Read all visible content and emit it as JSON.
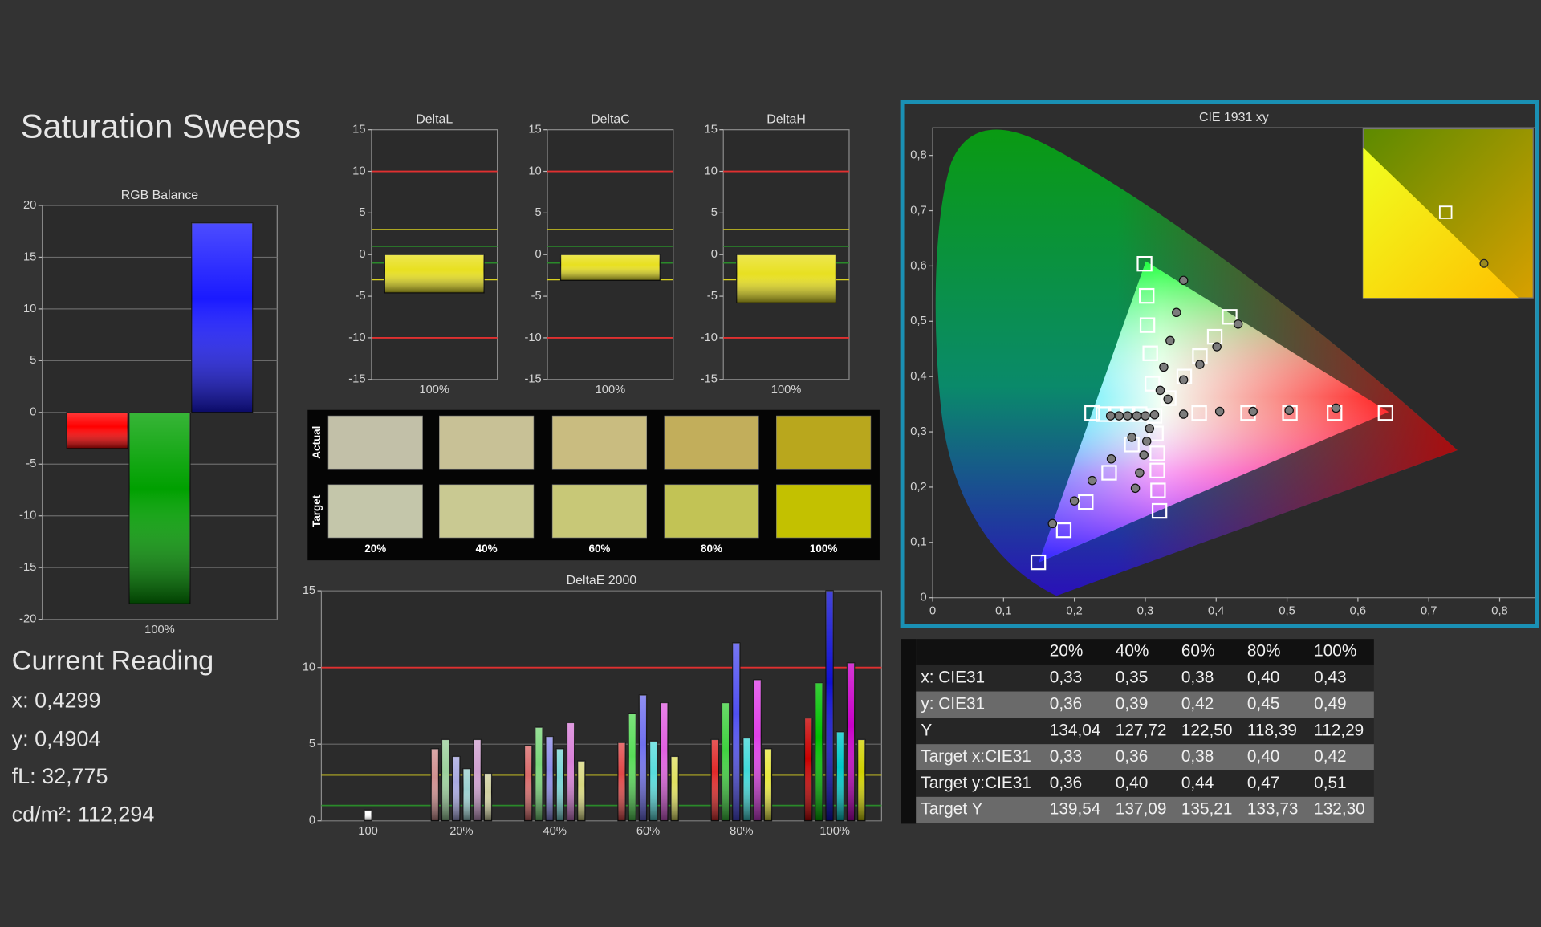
{
  "title": "Saturation Sweeps",
  "current_reading": {
    "title": "Current Reading",
    "lines": [
      "x: 0,4299",
      "y: 0,4904",
      "fL: 32,775",
      "cd/m²: 112,294"
    ]
  },
  "swatches": {
    "rows": [
      "Actual",
      "Target"
    ],
    "columns": [
      "20%",
      "40%",
      "60%",
      "80%",
      "100%"
    ],
    "colors": [
      [
        "#c2c0a8",
        "#c8c196",
        "#c9bc80",
        "#c2ae5b",
        "#b9a71d"
      ],
      [
        "#c4c6aa",
        "#c9c992",
        "#c8c877",
        "#c2c355",
        "#c3c100"
      ]
    ]
  },
  "table": {
    "columns": [
      "20%",
      "40%",
      "60%",
      "80%",
      "100%"
    ],
    "rows": [
      {
        "label": "x: CIE31",
        "cells": [
          "0,33",
          "0,35",
          "0,38",
          "0,40",
          "0,43"
        ]
      },
      {
        "label": "y: CIE31",
        "cells": [
          "0,36",
          "0,39",
          "0,42",
          "0,45",
          "0,49"
        ]
      },
      {
        "label": "Y",
        "cells": [
          "134,04",
          "127,72",
          "122,50",
          "118,39",
          "112,29"
        ]
      },
      {
        "label": "Target x:CIE31",
        "cells": [
          "0,33",
          "0,36",
          "0,38",
          "0,40",
          "0,42"
        ]
      },
      {
        "label": "Target y:CIE31",
        "cells": [
          "0,36",
          "0,40",
          "0,44",
          "0,47",
          "0,51"
        ]
      },
      {
        "label": "Target Y",
        "cells": [
          "139,54",
          "137,09",
          "135,21",
          "133,73",
          "132,30"
        ]
      }
    ]
  },
  "chart_data": [
    {
      "type": "bar",
      "title": "RGB Balance",
      "categories": [
        "100%"
      ],
      "series": [
        {
          "color": "#ff0000",
          "values": [
            -3.5
          ]
        },
        {
          "color": "#00a000",
          "values": [
            -18.5
          ]
        },
        {
          "color": "#1a1aff",
          "values": [
            18.3
          ]
        }
      ],
      "ylim": [
        -20,
        20
      ],
      "yticks": [
        -20,
        -15,
        -10,
        -5,
        0,
        5,
        10,
        15,
        20
      ],
      "grid": true
    },
    {
      "type": "bar",
      "title": "DeltaL",
      "categories": [
        "100%"
      ],
      "values": [
        -4.6
      ],
      "color": "#e8e020",
      "ylim": [
        -15,
        15
      ],
      "yticks": [
        15,
        10,
        5,
        0,
        -5,
        -10,
        -15
      ],
      "grid": false,
      "reference_lines": [
        {
          "value": 10,
          "color": "#e03030"
        },
        {
          "value": -10,
          "color": "#e03030"
        },
        {
          "value": 3,
          "color": "#d8d020"
        },
        {
          "value": -3,
          "color": "#d8d020"
        },
        {
          "value": 1,
          "color": "#2a8a2a"
        },
        {
          "value": -1,
          "color": "#2a8a2a"
        }
      ]
    },
    {
      "type": "bar",
      "title": "DeltaC",
      "categories": [
        "100%"
      ],
      "values": [
        -3.1
      ],
      "color": "#e8e020",
      "ylim": [
        -15,
        15
      ],
      "yticks": [
        15,
        10,
        5,
        0,
        -5,
        -10,
        -15
      ],
      "grid": false,
      "reference_lines": [
        {
          "value": 10,
          "color": "#e03030"
        },
        {
          "value": -10,
          "color": "#e03030"
        },
        {
          "value": 3,
          "color": "#d8d020"
        },
        {
          "value": -3,
          "color": "#d8d020"
        },
        {
          "value": 1,
          "color": "#2a8a2a"
        },
        {
          "value": -1,
          "color": "#2a8a2a"
        }
      ]
    },
    {
      "type": "bar",
      "title": "DeltaH",
      "categories": [
        "100%"
      ],
      "values": [
        -5.8
      ],
      "color": "#e8e020",
      "ylim": [
        -15,
        15
      ],
      "yticks": [
        15,
        10,
        5,
        0,
        -5,
        -10,
        -15
      ],
      "grid": false,
      "reference_lines": [
        {
          "value": 10,
          "color": "#e03030"
        },
        {
          "value": -10,
          "color": "#e03030"
        },
        {
          "value": 3,
          "color": "#d8d020"
        },
        {
          "value": -3,
          "color": "#d8d020"
        },
        {
          "value": 1,
          "color": "#2a8a2a"
        },
        {
          "value": -1,
          "color": "#2a8a2a"
        }
      ]
    },
    {
      "type": "bar",
      "title": "DeltaE 2000",
      "categories": [
        "100",
        "20%",
        "40%",
        "60%",
        "80%",
        "100%"
      ],
      "series": [
        {
          "colors": [
            "#ffffff",
            null,
            null,
            null,
            null,
            null
          ],
          "values": [
            0.7,
            null,
            null,
            null,
            null,
            null
          ]
        },
        {
          "colors": [
            null,
            "#d09090",
            "#d86a6a",
            "#e04848",
            "#e02a2a",
            "#c80000"
          ],
          "values": [
            null,
            4.7,
            4.9,
            5.1,
            5.3,
            6.7
          ]
        },
        {
          "colors": [
            null,
            "#9cd09c",
            "#7ad67a",
            "#58dc58",
            "#40d040",
            "#00c000"
          ],
          "values": [
            null,
            5.3,
            6.1,
            7.0,
            7.7,
            9.0
          ]
        },
        {
          "colors": [
            null,
            "#a8a8e0",
            "#8c8ce8",
            "#7070ee",
            "#5050f0",
            "#1010d0"
          ],
          "values": [
            null,
            4.2,
            5.5,
            8.2,
            11.6,
            15
          ]
        },
        {
          "colors": [
            null,
            "#9cd0d0",
            "#7ad6d6",
            "#58dcdc",
            "#40d8d8",
            "#00c8c8"
          ],
          "values": [
            null,
            3.4,
            4.7,
            5.2,
            5.4,
            5.8
          ]
        },
        {
          "colors": [
            null,
            "#d0a0d0",
            "#d880d8",
            "#e060e0",
            "#e040e8",
            "#c800c8"
          ],
          "values": [
            null,
            5.3,
            6.4,
            7.7,
            9.2,
            10.3
          ]
        },
        {
          "colors": [
            null,
            "#d0d0a0",
            "#d8d880",
            "#e0e060",
            "#e8e840",
            "#d0d000"
          ],
          "values": [
            null,
            3.1,
            3.9,
            4.2,
            4.7,
            5.3
          ]
        }
      ],
      "ylim": [
        0,
        15
      ],
      "yticks": [
        0,
        5,
        10,
        15
      ],
      "grid": true,
      "reference_lines": [
        {
          "value": 10,
          "color": "#e03030"
        },
        {
          "value": 3,
          "color": "#d8d020"
        },
        {
          "value": 1,
          "color": "#2a8a2a"
        }
      ]
    },
    {
      "type": "scatter",
      "title": "CIE 1931 xy",
      "xlim": [
        0,
        0.85
      ],
      "ylim": [
        0,
        0.85
      ],
      "xticks": [
        0,
        {
          "value": 0.1,
          "label": "0,1"
        },
        {
          "value": 0.2,
          "label": "0,2"
        },
        {
          "value": 0.3,
          "label": "0,3"
        },
        {
          "value": 0.4,
          "label": "0,4"
        },
        {
          "value": 0.5,
          "label": "0,5"
        },
        {
          "value": 0.6,
          "label": "0,6"
        },
        {
          "value": 0.7,
          "label": "0,7"
        },
        {
          "value": 0.8,
          "label": "0,8"
        }
      ],
      "yticks": [
        0,
        {
          "value": 0.1,
          "label": "0,1"
        },
        {
          "value": 0.2,
          "label": "0,2"
        },
        {
          "value": 0.3,
          "label": "0,3"
        },
        {
          "value": 0.4,
          "label": "0,4"
        },
        {
          "value": 0.5,
          "label": "0,5"
        },
        {
          "value": 0.6,
          "label": "0,6"
        },
        {
          "value": 0.7,
          "label": "0,7"
        },
        {
          "value": 0.8,
          "label": "0,8"
        }
      ],
      "grid": false,
      "series": [
        {
          "marker": "square",
          "color": "#ffffff",
          "x": [
            0.313,
            0.376,
            0.445,
            0.504,
            0.567,
            0.639,
            0.31,
            0.307,
            0.303,
            0.302,
            0.299,
            0.281,
            0.249,
            0.216,
            0.185,
            0.149,
            0.292,
            0.275,
            0.258,
            0.241,
            0.225,
            0.315,
            0.317,
            0.317,
            0.318,
            0.32,
            0.333,
            0.355,
            0.377,
            0.398,
            0.419
          ],
          "y": [
            0.329,
            0.334,
            0.334,
            0.334,
            0.334,
            0.334,
            0.387,
            0.442,
            0.493,
            0.546,
            0.604,
            0.277,
            0.226,
            0.173,
            0.122,
            0.064,
            0.332,
            0.332,
            0.332,
            0.332,
            0.334,
            0.297,
            0.261,
            0.23,
            0.194,
            0.157,
            0.361,
            0.4,
            0.437,
            0.472,
            0.508
          ]
        },
        {
          "marker": "circle",
          "color": "#7c7c7c",
          "x": [
            0.313,
            0.354,
            0.405,
            0.452,
            0.503,
            0.569,
            0.321,
            0.326,
            0.335,
            0.344,
            0.354,
            0.281,
            0.252,
            0.225,
            0.2,
            0.169,
            0.3,
            0.288,
            0.275,
            0.263,
            0.251,
            0.306,
            0.302,
            0.298,
            0.292,
            0.286,
            0.332,
            0.354,
            0.377,
            0.401,
            0.431
          ],
          "y": [
            0.331,
            0.332,
            0.337,
            0.337,
            0.339,
            0.343,
            0.375,
            0.417,
            0.465,
            0.516,
            0.574,
            0.29,
            0.251,
            0.212,
            0.175,
            0.134,
            0.329,
            0.329,
            0.329,
            0.329,
            0.329,
            0.306,
            0.283,
            0.258,
            0.226,
            0.198,
            0.359,
            0.394,
            0.422,
            0.454,
            0.495
          ]
        }
      ]
    }
  ]
}
